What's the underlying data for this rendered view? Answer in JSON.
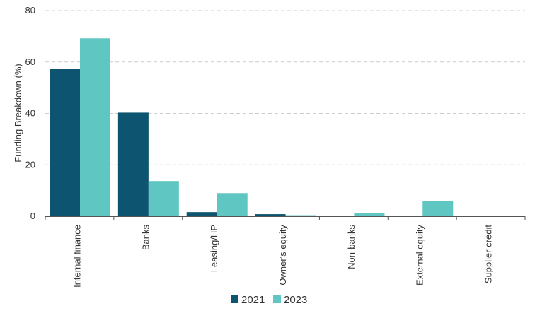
{
  "chart_data": {
    "type": "bar",
    "title": "",
    "xlabel": "",
    "ylabel": "Funding Breakdown (%)",
    "ylim": [
      0,
      80
    ],
    "yticks": [
      0,
      20,
      40,
      60,
      80
    ],
    "grid": true,
    "legend_position": "bottom",
    "categories": [
      "Internal finance",
      "Banks",
      "Leasing/HP",
      "Owner's equity",
      "Non-banks",
      "External equity",
      "Supplier credit"
    ],
    "series": [
      {
        "name": "2021",
        "color": "#0d5470",
        "values": [
          57.2,
          40.3,
          1.6,
          0.8,
          0,
          0,
          0
        ]
      },
      {
        "name": "2023",
        "color": "#5fc6c1",
        "values": [
          69.2,
          13.7,
          9.0,
          0.4,
          1.3,
          5.8,
          0
        ]
      }
    ]
  }
}
